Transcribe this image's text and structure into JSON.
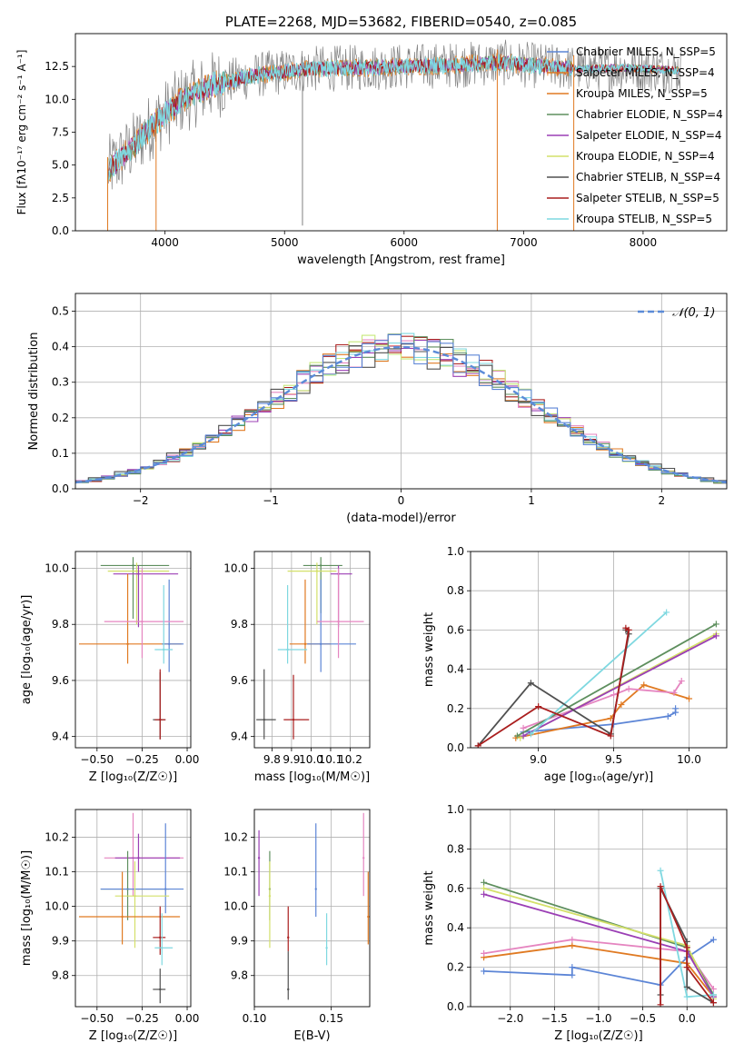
{
  "colors": {
    "blue": "#5c85d6",
    "orange": "#e07a22",
    "green": "#5e8f5e",
    "purple": "#9b3fb5",
    "yellow": "#d4e06a",
    "dark": "#505050",
    "red": "#aa1e1e",
    "cyan": "#7fd8e0",
    "pink": "#e585c0",
    "gray": "#808080",
    "lime": "#c6e87a",
    "dashed": "#5b8bd8"
  },
  "chart_data": [
    {
      "type": "line",
      "id": "spectrum",
      "title": "PLATE=2268, MJD=53682, FIBERID=0540, z=0.085",
      "xlabel": "wavelength [Angstrom, rest frame]",
      "ylabel": "Flux [f_λ10^-17 erg cm^-2 s^-1 A^-1]",
      "xlim": [
        3250,
        8700
      ],
      "ylim": [
        0,
        15
      ],
      "xticks": [
        4000,
        5000,
        6000,
        7000,
        8000
      ],
      "yticks": [
        0.0,
        2.5,
        5.0,
        7.5,
        10.0,
        12.5
      ],
      "ytick_labels": [
        "0.0",
        "2.5",
        "5.0",
        "7.5",
        "10.0",
        "12.5"
      ],
      "continuum_x": [
        3520,
        3700,
        3900,
        4000,
        4150,
        4400,
        4800,
        5200,
        5600,
        6000,
        6400,
        6800,
        7200,
        7500,
        7800,
        8300
      ],
      "continuum_y": [
        4.6,
        6.1,
        8.1,
        8.9,
        10.0,
        11.1,
        11.9,
        12.3,
        12.4,
        12.5,
        12.6,
        12.8,
        12.5,
        12.3,
        12.4,
        12.2
      ],
      "dips": [
        {
          "x": 3925,
          "y": 0.0
        },
        {
          "x": 5150,
          "y": 0.4
        },
        {
          "x": 6780,
          "y": 0.0
        },
        {
          "x": 7420,
          "y": 0.0
        },
        {
          "x": 3520,
          "y": 0.0
        }
      ],
      "legend": [
        "Chabrier MILES, N_SSP=5",
        "Salpeter MILES, N_SSP=4",
        "Kroupa MILES, N_SSP=5",
        "Chabrier ELODIE, N_SSP=4",
        "Salpeter ELODIE, N_SSP=4",
        "Kroupa ELODIE, N_SSP=4",
        "Chabrier STELIB, N_SSP=4",
        "Salpeter STELIB, N_SSP=5",
        "Kroupa STELIB, N_SSP=5"
      ],
      "legend_colors": [
        "blue",
        "orange",
        "orange",
        "green",
        "purple",
        "yellow",
        "dark",
        "red",
        "cyan"
      ],
      "legend_placement": "upper-right",
      "grid": false
    },
    {
      "type": "bar",
      "id": "residuals",
      "xlabel": "(data-model)/error",
      "ylabel": "Normed distribution",
      "xlim": [
        -2.5,
        2.5
      ],
      "ylim": [
        0,
        0.55
      ],
      "xticks": [
        -2,
        -1,
        0,
        1,
        2
      ],
      "xtick_labels": [
        "−2",
        "−1",
        "0",
        "1",
        "2"
      ],
      "yticks": [
        0.0,
        0.1,
        0.2,
        0.3,
        0.4,
        0.5
      ],
      "ytick_labels": [
        "0.0",
        "0.1",
        "0.2",
        "0.3",
        "0.4",
        "0.5"
      ],
      "bin_width": 0.1,
      "bins_start": -2.5,
      "legend": [
        "𝒩(0, 1)"
      ],
      "legend_placement": "upper-right",
      "grid": true
    },
    {
      "type": "scatter",
      "id": "z-age",
      "xlabel": "Z [log₁₀(Z/Z☉)]",
      "ylabel": "age  [log₁₀(age/yr)]",
      "xlim": [
        -0.62,
        0.02
      ],
      "ylim": [
        9.36,
        10.06
      ],
      "xticks": [
        -0.5,
        -0.25,
        0.0
      ],
      "xtick_labels": [
        "−0.50",
        "−0.25",
        "0.00"
      ],
      "yticks": [
        9.4,
        9.6,
        9.8,
        10.0
      ],
      "ytick_labels": [
        "9.4",
        "9.6",
        "9.8",
        "10.0"
      ],
      "grid": true,
      "points": [
        {
          "c": "green",
          "x": -0.3,
          "xe": [
            -0.48,
            -0.1
          ],
          "y": 10.01,
          "ye": [
            9.82,
            10.04
          ]
        },
        {
          "c": "yellow",
          "x": -0.28,
          "xe": [
            -0.44,
            -0.1
          ],
          "y": 9.99,
          "ye": [
            9.8,
            10.02
          ]
        },
        {
          "c": "purple",
          "x": -0.27,
          "xe": [
            -0.41,
            -0.05
          ],
          "y": 9.98,
          "ye": [
            9.79,
            10.01
          ]
        },
        {
          "c": "orange",
          "x": -0.33,
          "xe": [
            -0.6,
            -0.03
          ],
          "y": 9.73,
          "ye": [
            9.66,
            9.98
          ]
        },
        {
          "c": "blue",
          "x": -0.1,
          "xe": [
            -0.14,
            -0.02
          ],
          "y": 9.73,
          "ye": [
            9.63,
            9.96
          ]
        },
        {
          "c": "pink",
          "x": -0.25,
          "xe": [
            -0.46,
            -0.02
          ],
          "y": 9.81,
          "ye": [
            9.68,
            10.0
          ]
        },
        {
          "c": "cyan",
          "x": -0.13,
          "xe": [
            -0.18,
            -0.08
          ],
          "y": 9.71,
          "ye": [
            9.66,
            9.94
          ]
        },
        {
          "c": "dark",
          "x": -0.15,
          "xe": [
            -0.19,
            -0.12
          ],
          "y": 9.46,
          "ye": [
            9.39,
            9.63
          ]
        },
        {
          "c": "red",
          "x": -0.15,
          "xe": [
            -0.18,
            -0.12
          ],
          "y": 9.46,
          "ye": [
            9.39,
            9.64
          ]
        }
      ]
    },
    {
      "type": "scatter",
      "id": "mass-age",
      "xlabel": "mass [log₁₀(M/M☉)]",
      "ylabel": "",
      "xlim": [
        9.71,
        10.3
      ],
      "ylim": [
        9.36,
        10.06
      ],
      "xticks": [
        9.8,
        9.9,
        10.0,
        10.1,
        10.2
      ],
      "xtick_labels": [
        "9.8",
        "9.9",
        "10.0",
        "10.1",
        "10.2"
      ],
      "yticks": [
        9.4,
        9.6,
        9.8,
        10.0
      ],
      "ytick_labels": [
        "9.4",
        "9.6",
        "9.8",
        "10.0"
      ],
      "grid": true,
      "points": [
        {
          "c": "green",
          "x": 10.05,
          "xe": [
            9.96,
            10.16
          ],
          "y": 10.01,
          "ye": [
            9.84,
            10.04
          ]
        },
        {
          "c": "yellow",
          "x": 10.03,
          "xe": [
            9.88,
            10.13
          ],
          "y": 9.99,
          "ye": [
            9.8,
            10.02
          ]
        },
        {
          "c": "purple",
          "x": 10.14,
          "xe": [
            10.1,
            10.21
          ],
          "y": 9.98,
          "ye": [
            9.79,
            10.01
          ]
        },
        {
          "c": "orange",
          "x": 9.97,
          "xe": [
            9.89,
            10.1
          ],
          "y": 9.73,
          "ye": [
            9.66,
            9.96
          ]
        },
        {
          "c": "blue",
          "x": 10.05,
          "xe": [
            9.98,
            10.23
          ],
          "y": 9.73,
          "ye": [
            9.63,
            9.96
          ]
        },
        {
          "c": "pink",
          "x": 10.14,
          "xe": [
            10.03,
            10.27
          ],
          "y": 9.81,
          "ye": [
            9.68,
            10.0
          ]
        },
        {
          "c": "cyan",
          "x": 9.88,
          "xe": [
            9.83,
            9.98
          ],
          "y": 9.71,
          "ye": [
            9.66,
            9.94
          ]
        },
        {
          "c": "dark",
          "x": 9.76,
          "xe": [
            9.72,
            9.82
          ],
          "y": 9.46,
          "ye": [
            9.39,
            9.64
          ]
        },
        {
          "c": "red",
          "x": 9.91,
          "xe": [
            9.86,
            9.99
          ],
          "y": 9.46,
          "ye": [
            9.39,
            9.62
          ]
        }
      ]
    },
    {
      "type": "line",
      "id": "age-weight",
      "xlabel": "age  [log₁₀(age/yr)]",
      "ylabel": "mass weight",
      "xlim": [
        8.55,
        10.25
      ],
      "ylim": [
        0,
        1
      ],
      "xticks": [
        9.0,
        9.5,
        10.0
      ],
      "xtick_labels": [
        "9.0",
        "9.5",
        "10.0"
      ],
      "yticks": [
        0.0,
        0.2,
        0.4,
        0.6,
        0.8,
        1.0
      ],
      "ytick_labels": [
        "0.0",
        "0.2",
        "0.4",
        "0.6",
        "0.8",
        "1.0"
      ],
      "grid": true,
      "series": [
        {
          "c": "blue",
          "x": [
            8.9,
            9.5,
            9.86,
            9.91,
            9.91
          ],
          "y": [
            0.08,
            0.12,
            0.16,
            0.18,
            0.2
          ]
        },
        {
          "c": "orange",
          "x": [
            8.85,
            9.48,
            9.55,
            9.7,
            10.0
          ],
          "y": [
            0.05,
            0.15,
            0.22,
            0.32,
            0.25
          ]
        },
        {
          "c": "pink",
          "x": [
            8.9,
            9.5,
            9.6,
            9.9,
            9.95
          ],
          "y": [
            0.1,
            0.27,
            0.3,
            0.28,
            0.34
          ]
        },
        {
          "c": "green",
          "x": [
            8.86,
            10.18
          ],
          "y": [
            0.06,
            0.63
          ]
        },
        {
          "c": "yellow",
          "x": [
            8.88,
            10.18
          ],
          "y": [
            0.05,
            0.58
          ]
        },
        {
          "c": "purple",
          "x": [
            8.9,
            10.18
          ],
          "y": [
            0.06,
            0.57
          ]
        },
        {
          "c": "cyan",
          "x": [
            8.95,
            9.85
          ],
          "y": [
            0.07,
            0.69
          ]
        },
        {
          "c": "dark",
          "x": [
            8.6,
            8.95,
            9.48,
            9.6,
            9.58
          ],
          "y": [
            0.01,
            0.33,
            0.07,
            0.58,
            0.6
          ]
        },
        {
          "c": "red",
          "x": [
            8.6,
            9.0,
            9.48,
            9.6,
            9.58
          ],
          "y": [
            0.01,
            0.21,
            0.06,
            0.6,
            0.61
          ]
        }
      ]
    },
    {
      "type": "scatter",
      "id": "z-mass",
      "xlabel": "Z [log₁₀(Z/Z☉)]",
      "ylabel": "mass [log₁₀(M/M☉)]",
      "xlim": [
        -0.62,
        0.02
      ],
      "ylim": [
        9.71,
        10.28
      ],
      "xticks": [
        -0.5,
        -0.25,
        0.0
      ],
      "xtick_labels": [
        "−0.50",
        "−0.25",
        "0.00"
      ],
      "yticks": [
        9.8,
        9.9,
        10.0,
        10.1,
        10.2
      ],
      "ytick_labels": [
        "9.8",
        "9.9",
        "10.0",
        "10.1",
        "10.2"
      ],
      "grid": true,
      "points": [
        {
          "c": "pink",
          "x": -0.3,
          "xe": [
            -0.46,
            -0.02
          ],
          "y": 10.14,
          "ye": [
            10.03,
            10.27
          ]
        },
        {
          "c": "purple",
          "x": -0.27,
          "xe": [
            -0.4,
            -0.04
          ],
          "y": 10.14,
          "ye": [
            10.1,
            10.21
          ]
        },
        {
          "c": "green",
          "x": -0.33,
          "xe": [
            -0.48,
            -0.1
          ],
          "y": 10.05,
          "ye": [
            9.96,
            10.16
          ]
        },
        {
          "c": "blue",
          "x": -0.12,
          "xe": [
            -0.48,
            -0.02
          ],
          "y": 10.05,
          "ye": [
            9.98,
            10.24
          ]
        },
        {
          "c": "yellow",
          "x": -0.29,
          "xe": [
            -0.4,
            -0.1
          ],
          "y": 10.03,
          "ye": [
            9.88,
            10.13
          ]
        },
        {
          "c": "orange",
          "x": -0.36,
          "xe": [
            -0.6,
            -0.04
          ],
          "y": 9.97,
          "ye": [
            9.89,
            10.1
          ]
        },
        {
          "c": "red",
          "x": -0.15,
          "xe": [
            -0.19,
            -0.12
          ],
          "y": 9.91,
          "ye": [
            9.86,
            10.0
          ]
        },
        {
          "c": "cyan",
          "x": -0.14,
          "xe": [
            -0.18,
            -0.08
          ],
          "y": 9.88,
          "ye": [
            9.83,
            9.98
          ]
        },
        {
          "c": "dark",
          "x": -0.15,
          "xe": [
            -0.19,
            -0.12
          ],
          "y": 9.76,
          "ye": [
            9.72,
            9.82
          ]
        }
      ]
    },
    {
      "type": "scatter",
      "id": "ebv-mass",
      "xlabel": "E(B-V)",
      "ylabel": "",
      "xlim": [
        0.1,
        0.175
      ],
      "ylim": [
        9.71,
        10.28
      ],
      "xticks": [
        0.1,
        0.15
      ],
      "xtick_labels": [
        "0.10",
        "0.15"
      ],
      "yticks": [
        9.8,
        9.9,
        10.0,
        10.1,
        10.2
      ],
      "ytick_labels": [
        "9.8",
        "9.9",
        "10.0",
        "10.1",
        "10.2"
      ],
      "grid": true,
      "points": [
        {
          "c": "purple",
          "x": 0.103,
          "y": 10.14,
          "ye": [
            10.03,
            10.22
          ]
        },
        {
          "c": "green",
          "x": 0.11,
          "y": 10.05,
          "ye": [
            9.96,
            10.16
          ]
        },
        {
          "c": "yellow",
          "x": 0.11,
          "y": 10.03,
          "ye": [
            9.88,
            10.13
          ]
        },
        {
          "c": "red",
          "x": 0.122,
          "y": 9.91,
          "ye": [
            9.87,
            10.0
          ]
        },
        {
          "c": "dark",
          "x": 0.122,
          "y": 9.76,
          "ye": [
            9.73,
            9.87
          ]
        },
        {
          "c": "blue",
          "x": 0.14,
          "y": 10.05,
          "ye": [
            9.97,
            10.24
          ]
        },
        {
          "c": "cyan",
          "x": 0.147,
          "y": 9.88,
          "ye": [
            9.83,
            9.98
          ]
        },
        {
          "c": "pink",
          "x": 0.171,
          "y": 10.14,
          "ye": [
            10.03,
            10.27
          ]
        },
        {
          "c": "orange",
          "x": 0.174,
          "y": 9.97,
          "ye": [
            9.89,
            10.1
          ]
        }
      ]
    },
    {
      "type": "line",
      "id": "z-weight",
      "xlabel": "Z [log₁₀(Z/Z☉)]",
      "ylabel": "mass weight",
      "xlim": [
        -2.45,
        0.45
      ],
      "ylim": [
        0,
        1
      ],
      "xticks": [
        -2.0,
        -1.5,
        -1.0,
        -0.5,
        0.0
      ],
      "xtick_labels": [
        "−2.0",
        "−1.5",
        "−1.0",
        "−0.5",
        "0.0"
      ],
      "yticks": [
        0.0,
        0.2,
        0.4,
        0.6,
        0.8,
        1.0
      ],
      "ytick_labels": [
        "0.0",
        "0.2",
        "0.4",
        "0.6",
        "0.8",
        "1.0"
      ],
      "grid": true,
      "series": [
        {
          "c": "blue",
          "x": [
            -2.3,
            -1.3,
            -1.3,
            -0.3,
            0.0,
            0.3
          ],
          "y": [
            0.18,
            0.16,
            0.2,
            0.11,
            0.25,
            0.34
          ]
        },
        {
          "c": "orange",
          "x": [
            -2.3,
            -1.3,
            0.0,
            0.3
          ],
          "y": [
            0.25,
            0.31,
            0.22,
            0.05
          ]
        },
        {
          "c": "pink",
          "x": [
            -2.3,
            -1.3,
            0.0,
            0.3
          ],
          "y": [
            0.27,
            0.34,
            0.28,
            0.09
          ]
        },
        {
          "c": "green",
          "x": [
            -2.3,
            0.0,
            0.3
          ],
          "y": [
            0.63,
            0.3,
            0.06
          ]
        },
        {
          "c": "yellow",
          "x": [
            -2.3,
            0.0,
            0.3
          ],
          "y": [
            0.6,
            0.31,
            0.04
          ]
        },
        {
          "c": "purple",
          "x": [
            -2.3,
            0.0,
            0.3
          ],
          "y": [
            0.57,
            0.28,
            0.05
          ]
        },
        {
          "c": "cyan",
          "x": [
            -0.3,
            0.0,
            0.3
          ],
          "y": [
            0.69,
            0.05,
            0.06
          ]
        },
        {
          "c": "dark",
          "x": [
            -0.3,
            -0.3,
            0.0,
            0.0,
            0.3
          ],
          "y": [
            0.06,
            0.6,
            0.33,
            0.1,
            0.02
          ]
        },
        {
          "c": "red",
          "x": [
            -0.3,
            -0.3,
            0.0,
            0.0,
            0.3
          ],
          "y": [
            0.01,
            0.61,
            0.3,
            0.2,
            0.02
          ]
        }
      ]
    }
  ]
}
